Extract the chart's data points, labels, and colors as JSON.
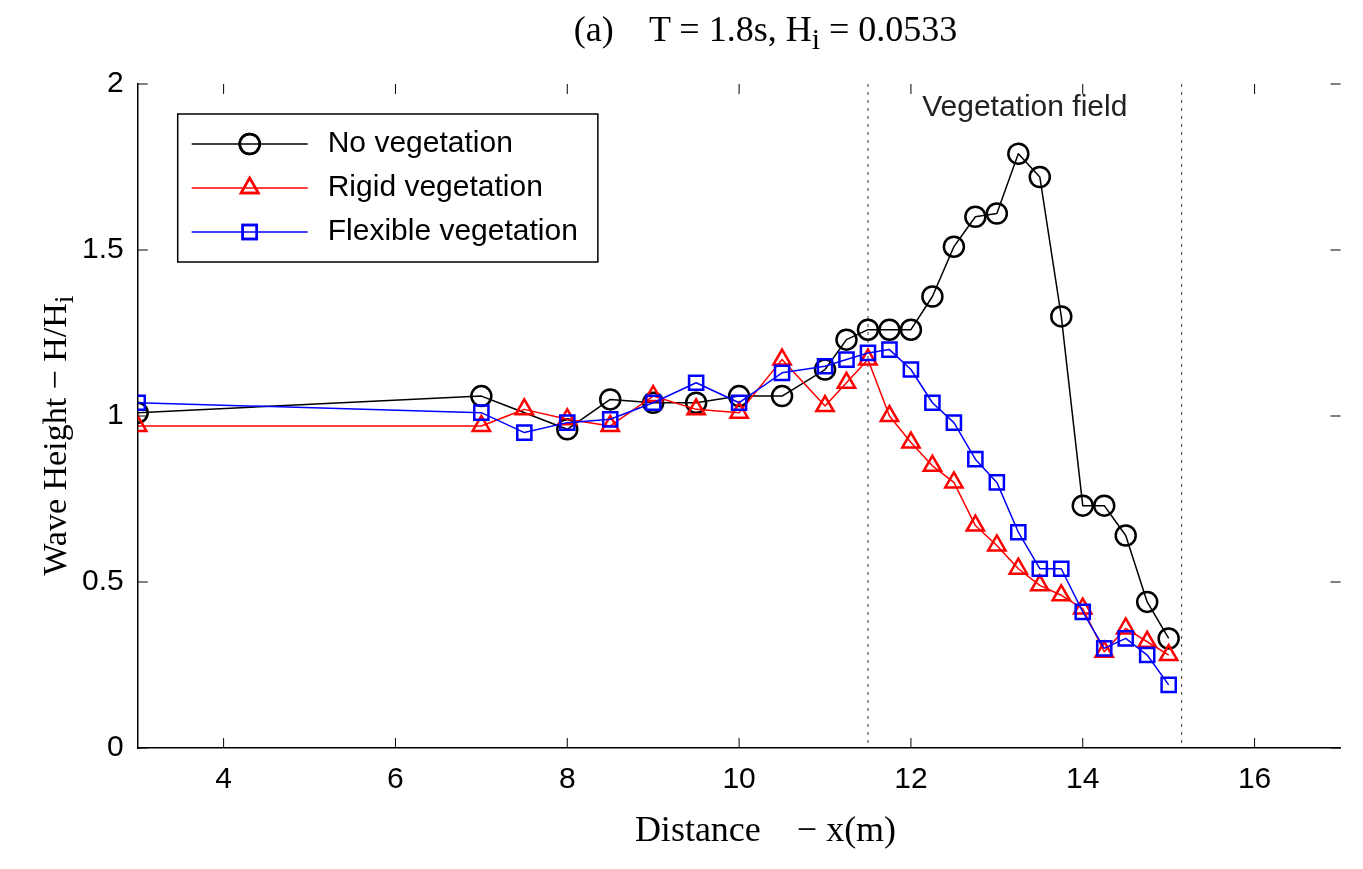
{
  "chart_data": {
    "type": "line",
    "title": "(a)    T = 1.8s, H$_{i}$ = 0.0533",
    "xlabel": "Distance    − x(m)",
    "ylabel": "Wave Height  − H/H$_{i}$",
    "xlim": [
      3,
      17
    ],
    "xticks": [
      4,
      6,
      8,
      10,
      12,
      14,
      16
    ],
    "ylim": [
      0,
      2
    ],
    "yticks": [
      0,
      0.5,
      1,
      1.5,
      2
    ],
    "grid": false,
    "legend": "top left",
    "line_style": "solid",
    "series": [
      {
        "name": "No vegetation",
        "color": "#000000",
        "marker": "circle",
        "x": [
          3,
          7,
          8,
          8.5,
          9,
          9.5,
          10,
          10.5,
          11,
          11.25,
          11.5,
          11.75,
          12,
          12.25,
          12.5,
          12.75,
          13,
          13.25,
          13.5,
          13.75,
          14,
          14.25,
          14.5,
          14.75,
          15
        ],
        "values": [
          1.01,
          1.06,
          0.96,
          1.05,
          1.04,
          1.04,
          1.06,
          1.06,
          1.14,
          1.23,
          1.26,
          1.26,
          1.26,
          1.36,
          1.51,
          1.6,
          1.61,
          1.79,
          1.72,
          1.3,
          0.73,
          0.73,
          0.64,
          0.44,
          0.33
        ]
      },
      {
        "name": "Rigid vegetation",
        "color": "#ff0000",
        "marker": "triangle",
        "x": [
          3,
          7,
          7.5,
          8,
          8.5,
          9,
          9.5,
          10,
          10.5,
          11,
          11.25,
          11.5,
          11.75,
          12,
          12.25,
          12.5,
          12.75,
          13,
          13.25,
          13.5,
          13.75,
          14,
          14.25,
          14.5,
          14.75,
          15
        ],
        "values": [
          0.97,
          0.97,
          1.02,
          0.99,
          0.97,
          1.06,
          1.02,
          1.01,
          1.17,
          1.03,
          1.1,
          1.17,
          1.0,
          0.92,
          0.85,
          0.8,
          0.67,
          0.61,
          0.54,
          0.49,
          0.46,
          0.42,
          0.29,
          0.36,
          0.32,
          0.28
        ]
      },
      {
        "name": "Flexible vegetation",
        "color": "#0000ff",
        "marker": "square",
        "x": [
          3,
          7,
          7.5,
          8,
          8.5,
          9,
          9.5,
          10,
          10.5,
          11,
          11.25,
          11.5,
          11.75,
          12,
          12.25,
          12.5,
          12.75,
          13,
          13.25,
          13.5,
          13.75,
          14,
          14.25,
          14.5,
          14.75,
          15
        ],
        "values": [
          1.04,
          1.01,
          0.95,
          0.98,
          0.99,
          1.04,
          1.1,
          1.04,
          1.13,
          1.15,
          1.17,
          1.19,
          1.2,
          1.14,
          1.04,
          0.98,
          0.87,
          0.8,
          0.65,
          0.54,
          0.54,
          0.41,
          0.3,
          0.33,
          0.28,
          0.19
        ]
      }
    ],
    "ref_lines": [
      {
        "axis": "x",
        "value": 11.5,
        "color": "#555555",
        "line_style": "dotted"
      },
      {
        "axis": "x",
        "value": 15.15,
        "color": "#555555",
        "line_style": "dotted"
      }
    ],
    "annotations": [
      "Vegetation field"
    ]
  }
}
